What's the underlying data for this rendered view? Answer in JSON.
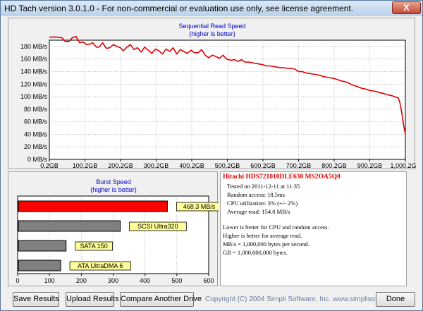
{
  "window": {
    "title": "HD Tach version 3.0.1.0  - For non-commercial or evaluation use only, see license agreement.",
    "close_glyph": "X"
  },
  "seq_chart": {
    "title": "Sequential Read Speed",
    "subtitle": "(higher is better)",
    "y_ticks": [
      "0 MB/s",
      "20 MB/s",
      "40 MB/s",
      "60 MB/s",
      "80 MB/s",
      "100 MB/s",
      "120 MB/s",
      "140 MB/s",
      "160 MB/s",
      "180 MB/s"
    ],
    "x_ticks": [
      "0.2GB",
      "100.2GB",
      "200.2GB",
      "300.2GB",
      "400.2GB",
      "500.2GB",
      "600.2GB",
      "700.2GB",
      "800.2GB",
      "900.2GB",
      "1,000.2GB"
    ]
  },
  "burst_chart": {
    "title": "Burst Speed",
    "subtitle": "(higher is better)",
    "x_ticks": [
      "0",
      "100",
      "200",
      "300",
      "400",
      "500",
      "600"
    ]
  },
  "chart_data": [
    {
      "type": "line",
      "title": "Sequential Read Speed",
      "subtitle": "(higher is better)",
      "x_unit": "GB",
      "y_unit": "MB/s",
      "xlim": [
        0.2,
        1000.2
      ],
      "ylim": [
        0,
        190
      ],
      "grid": true,
      "color": "#e00000",
      "x": [
        0.2,
        12,
        22,
        35,
        45,
        55,
        65,
        75,
        85,
        95,
        105,
        115,
        122,
        132,
        140,
        150,
        160,
        170,
        180,
        190,
        200,
        208,
        218,
        228,
        238,
        248,
        258,
        268,
        278,
        288,
        298,
        308,
        318,
        328,
        338,
        348,
        358,
        368,
        378,
        388,
        398,
        408,
        418,
        428,
        438,
        448,
        458,
        468,
        478,
        488,
        498,
        510,
        520,
        530,
        540,
        550,
        560,
        570,
        580,
        590,
        600,
        610,
        620,
        630,
        640,
        650,
        660,
        670,
        680,
        690,
        700,
        710,
        720,
        730,
        740,
        750,
        760,
        770,
        780,
        790,
        800,
        810,
        820,
        830,
        840,
        850,
        860,
        870,
        880,
        890,
        900,
        910,
        920,
        930,
        940,
        950,
        960,
        970,
        980,
        985,
        990,
        995,
        1000.2
      ],
      "y": [
        195,
        195,
        195,
        194,
        188,
        188,
        194,
        196,
        186,
        187,
        183,
        184,
        186,
        179,
        179,
        186,
        177,
        178,
        183,
        180,
        178,
        173,
        179,
        183,
        175,
        178,
        171,
        179,
        174,
        169,
        176,
        173,
        168,
        176,
        172,
        178,
        168,
        175,
        172,
        169,
        174,
        170,
        170,
        175,
        166,
        162,
        166,
        164,
        161,
        166,
        160,
        158,
        159,
        156,
        159,
        155,
        155,
        154,
        153,
        152,
        151,
        149,
        149,
        148,
        147,
        146,
        146,
        145,
        145,
        144,
        140,
        140,
        138,
        137,
        136,
        135,
        134,
        132,
        131,
        130,
        129,
        127,
        125,
        124,
        122,
        119,
        117,
        115,
        113,
        112,
        110,
        109,
        108,
        106,
        105,
        103,
        102,
        100,
        98,
        90,
        75,
        55,
        40
      ]
    },
    {
      "type": "bar",
      "title": "Burst Speed",
      "subtitle": "(higher is better)",
      "orientation": "horizontal",
      "xlim": [
        0,
        600
      ],
      "categories": [
        "",
        "SCSI Ultra320",
        "SATA 150",
        "ATA UltraDMA 6"
      ],
      "values": [
        468.3,
        320,
        150,
        133
      ],
      "labels": [
        "468.3 MB/s",
        "SCSI Ultra320",
        "SATA 150",
        "ATA UltraDMA 6"
      ],
      "colors": [
        "#ff0000",
        "#808080",
        "#808080",
        "#808080"
      ],
      "label_bg": "#ffff99"
    }
  ],
  "info": {
    "drive": "Hitachi HDS721010DLE630 MS2OA5Q0",
    "lines": [
      "Tested on 2011-12-11 at 11:35",
      "Random access: 18.5ms",
      "CPU utilization: 3% (+/- 2%)",
      "Average read: 154.0 MB/s"
    ],
    "notes": [
      "Lower is better for CPU and random access.",
      "Higher is better for average read.",
      "MB/s = 1,000,000 bytes per second.",
      "GB = 1,000,000,000 bytes."
    ]
  },
  "buttons": {
    "save": "Save Results",
    "upload": "Upload Results",
    "compare": "Compare Another Drive",
    "done": "Done"
  },
  "footer": {
    "copyright": "Copyright (C) 2004 Simpli Software, Inc. www.simplisoftware.com"
  }
}
